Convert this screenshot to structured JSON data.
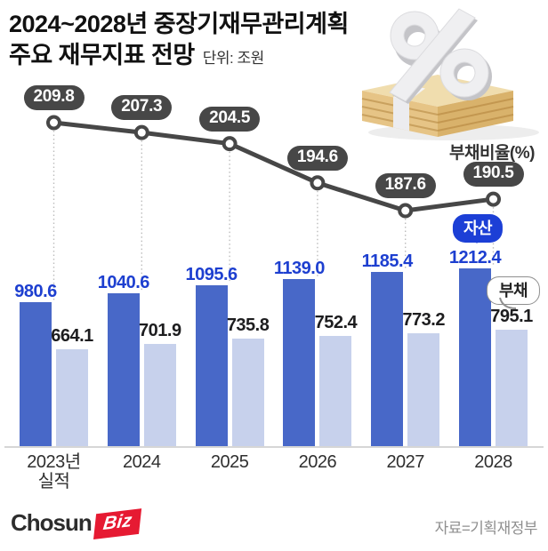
{
  "title": {
    "line1": "2024~2028년 중장기재무관리계획",
    "line2": "주요 재무지표 전망",
    "unit": "단위: 조원"
  },
  "chart_data": {
    "type": "bar",
    "title": "2024~2028년 중장기재무관리계획 주요 재무지표 전망",
    "unit": "조원",
    "categories": [
      [
        "2023년",
        "실적"
      ],
      [
        "2024"
      ],
      [
        "2025"
      ],
      [
        "2026"
      ],
      [
        "2027"
      ],
      [
        "2028"
      ]
    ],
    "series": [
      {
        "name": "자산",
        "type": "bar",
        "color": "#4868c8",
        "label_color": "#1d3fd0",
        "values": [
          980.6,
          1040.6,
          1095.6,
          1139.0,
          1185.4,
          1212.4
        ]
      },
      {
        "name": "부채",
        "type": "bar",
        "color": "#c7d1ec",
        "label_color": "#1d1d1f",
        "values": [
          664.1,
          701.9,
          735.8,
          752.4,
          773.2,
          795.1
        ]
      },
      {
        "name": "부채비율(%)",
        "type": "line",
        "color": "#474747",
        "values": [
          209.8,
          207.3,
          204.5,
          194.6,
          187.6,
          190.5
        ]
      }
    ],
    "line_axis_label": "부채비율(%)",
    "asset_callout": "자산",
    "debt_callout": "부채",
    "ylim_bars": [
      0,
      1300
    ],
    "legend_position": "inline-callouts",
    "grid": false
  },
  "colors": {
    "asset_bar": "#4868c8",
    "debt_bar": "#c7d1ec",
    "asset_text": "#1d3fd0",
    "line": "#474747",
    "pill_bg": "#474747",
    "callout_asset_bg": "#1c3fd6",
    "logo_red": "#e61a32"
  },
  "footer": {
    "logo_part1": "Chosun",
    "logo_part2": "Biz",
    "source": "자료=기획재정부"
  }
}
